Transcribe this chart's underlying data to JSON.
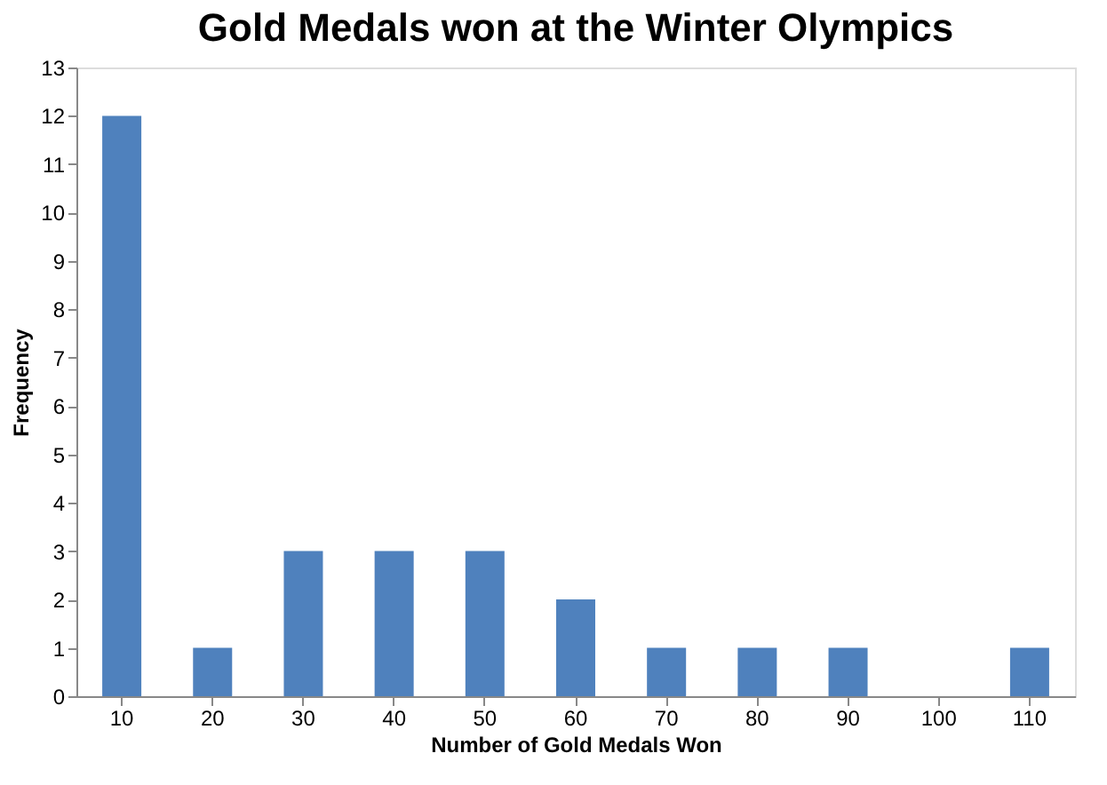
{
  "chart_data": {
    "type": "bar",
    "title": "Gold Medals won at the Winter Olympics",
    "xlabel": "Number of Gold Medals Won",
    "ylabel": "Frequency",
    "categories": [
      "10",
      "20",
      "30",
      "40",
      "50",
      "60",
      "70",
      "80",
      "90",
      "100",
      "110"
    ],
    "values": [
      12,
      1,
      3,
      3,
      3,
      2,
      1,
      1,
      1,
      0,
      1
    ],
    "color": "#4f81bd",
    "ylim": [
      0,
      13
    ],
    "yticks": [
      0,
      1,
      2,
      3,
      4,
      5,
      6,
      7,
      8,
      9,
      10,
      11,
      12,
      13
    ],
    "grid": false
  }
}
